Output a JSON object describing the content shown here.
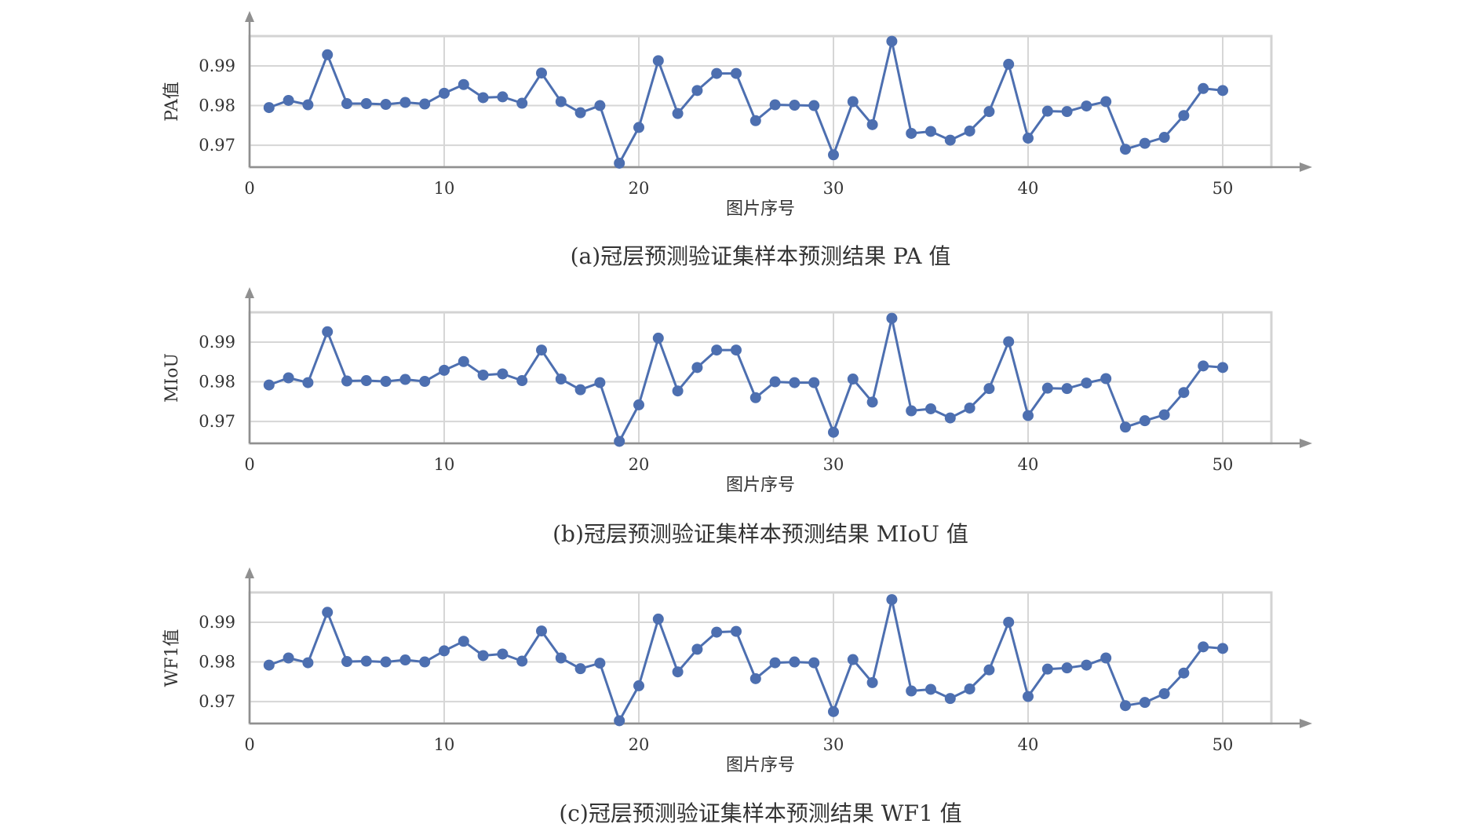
{
  "chart_data": [
    {
      "type": "line",
      "caption": "(a)冠层预测验证集样本预测结果 PA 值",
      "ylabel": "PA值",
      "xlabel": "图片序号",
      "xticks": [
        "0",
        "10",
        "20",
        "30",
        "40",
        "50"
      ],
      "yticks": [
        "0.97",
        "0.98",
        "0.99"
      ],
      "xlim": [
        0,
        52.5
      ],
      "ylim": [
        0.9645,
        0.9975
      ],
      "grid": true,
      "color": "#4d6fb0",
      "x": [
        1,
        2,
        3,
        4,
        5,
        6,
        7,
        8,
        9,
        10,
        11,
        12,
        13,
        14,
        15,
        16,
        17,
        18,
        19,
        20,
        21,
        22,
        23,
        24,
        25,
        26,
        27,
        28,
        29,
        30,
        31,
        32,
        33,
        34,
        35,
        36,
        37,
        38,
        39,
        40,
        41,
        42,
        43,
        44,
        45,
        46,
        47,
        48,
        49,
        50
      ],
      "values": [
        0.9795,
        0.9813,
        0.9802,
        0.9928,
        0.9805,
        0.9805,
        0.9803,
        0.9808,
        0.9804,
        0.9831,
        0.9853,
        0.982,
        0.9822,
        0.9806,
        0.9882,
        0.981,
        0.9782,
        0.98,
        0.9655,
        0.9745,
        0.9913,
        0.978,
        0.9838,
        0.9881,
        0.9881,
        0.9762,
        0.9802,
        0.9801,
        0.98,
        0.9676,
        0.981,
        0.9752,
        0.9962,
        0.973,
        0.9735,
        0.9713,
        0.9736,
        0.9785,
        0.9904,
        0.9718,
        0.9786,
        0.9785,
        0.9799,
        0.981,
        0.969,
        0.9705,
        0.972,
        0.9775,
        0.9843,
        0.9838
      ]
    },
    {
      "type": "line",
      "caption": "(b)冠层预测验证集样本预测结果 MIoU 值",
      "ylabel": "MIoU",
      "xlabel": "图片序号",
      "xticks": [
        "0",
        "10",
        "20",
        "30",
        "40",
        "50"
      ],
      "yticks": [
        "0.97",
        "0.98",
        "0.99"
      ],
      "xlim": [
        0,
        52.5
      ],
      "ylim": [
        0.9645,
        0.9975
      ],
      "grid": true,
      "color": "#4d6fb0",
      "x": [
        1,
        2,
        3,
        4,
        5,
        6,
        7,
        8,
        9,
        10,
        11,
        12,
        13,
        14,
        15,
        16,
        17,
        18,
        19,
        20,
        21,
        22,
        23,
        24,
        25,
        26,
        27,
        28,
        29,
        30,
        31,
        32,
        33,
        34,
        35,
        36,
        37,
        38,
        39,
        40,
        41,
        42,
        43,
        44,
        45,
        46,
        47,
        48,
        49,
        50
      ],
      "values": [
        0.9792,
        0.981,
        0.9798,
        0.9926,
        0.9802,
        0.9803,
        0.9801,
        0.9806,
        0.9801,
        0.9829,
        0.9851,
        0.9817,
        0.982,
        0.9803,
        0.988,
        0.9807,
        0.978,
        0.9798,
        0.965,
        0.9742,
        0.991,
        0.9777,
        0.9836,
        0.988,
        0.988,
        0.976,
        0.98,
        0.9798,
        0.9798,
        0.9673,
        0.9807,
        0.9749,
        0.996,
        0.9727,
        0.9732,
        0.9709,
        0.9734,
        0.9783,
        0.9901,
        0.9715,
        0.9784,
        0.9783,
        0.9797,
        0.9808,
        0.9686,
        0.9702,
        0.9717,
        0.9773,
        0.984,
        0.9836
      ]
    },
    {
      "type": "line",
      "caption": "(c)冠层预测验证集样本预测结果 WF1 值",
      "ylabel": "WF1值",
      "xlabel": "图片序号",
      "xticks": [
        "0",
        "10",
        "20",
        "30",
        "40",
        "50"
      ],
      "yticks": [
        "0.97",
        "0.98",
        "0.99"
      ],
      "xlim": [
        0,
        52.5
      ],
      "ylim": [
        0.9645,
        0.9975
      ],
      "grid": true,
      "color": "#4d6fb0",
      "x": [
        1,
        2,
        3,
        4,
        5,
        6,
        7,
        8,
        9,
        10,
        11,
        12,
        13,
        14,
        15,
        16,
        17,
        18,
        19,
        20,
        21,
        22,
        23,
        24,
        25,
        26,
        27,
        28,
        29,
        30,
        31,
        32,
        33,
        34,
        35,
        36,
        37,
        38,
        39,
        40,
        41,
        42,
        43,
        44,
        45,
        46,
        47,
        48,
        49,
        50
      ],
      "values": [
        0.9792,
        0.981,
        0.9798,
        0.9925,
        0.9801,
        0.9802,
        0.98,
        0.9805,
        0.98,
        0.9828,
        0.9852,
        0.9816,
        0.982,
        0.9802,
        0.9878,
        0.981,
        0.9783,
        0.9797,
        0.9652,
        0.974,
        0.9908,
        0.9775,
        0.9832,
        0.9875,
        0.9877,
        0.9758,
        0.9798,
        0.98,
        0.9798,
        0.9675,
        0.9806,
        0.9748,
        0.9957,
        0.9727,
        0.9731,
        0.9708,
        0.9732,
        0.978,
        0.99,
        0.9713,
        0.9782,
        0.9785,
        0.9792,
        0.981,
        0.969,
        0.9698,
        0.972,
        0.9772,
        0.9838,
        0.9834
      ]
    }
  ]
}
